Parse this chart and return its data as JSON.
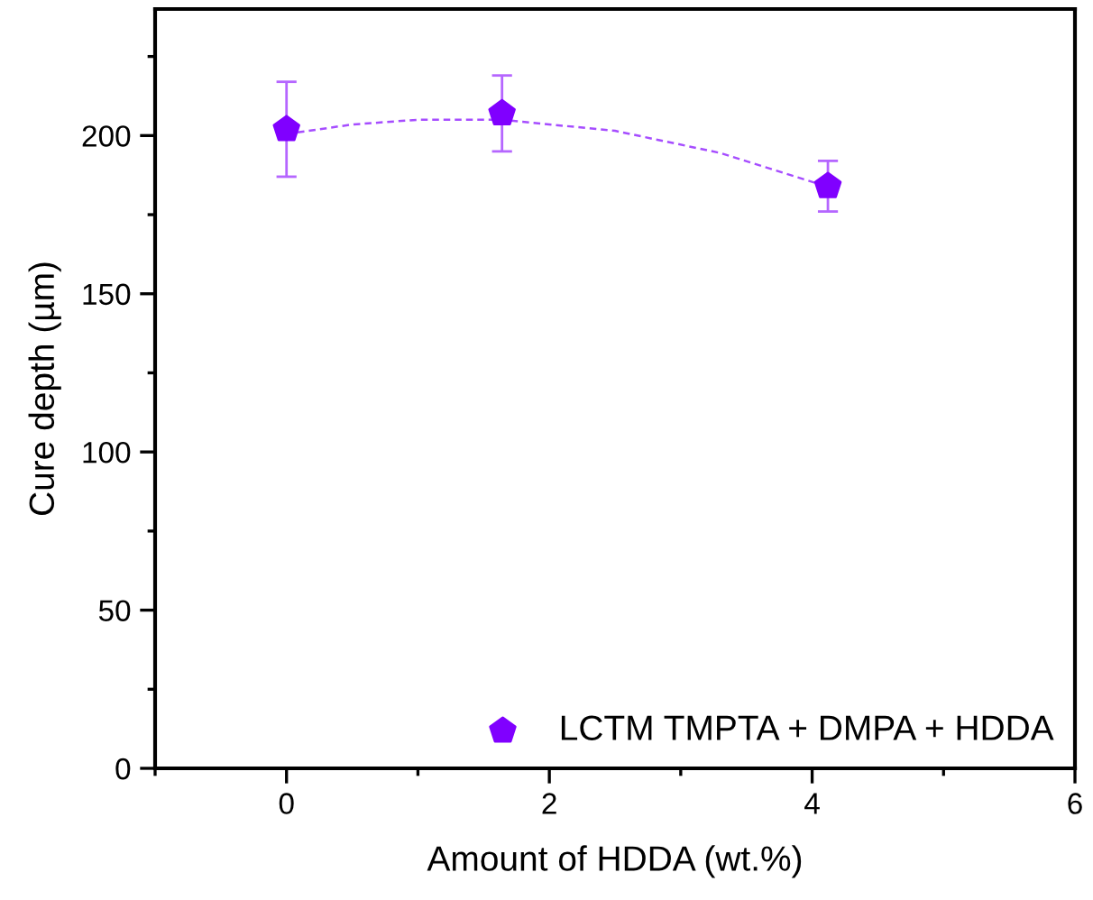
{
  "chart_data": {
    "type": "scatter",
    "xlabel": "Amount of HDDA (wt.%)",
    "ylabel": "Cure depth (µm)",
    "xlim": [
      -1,
      6
    ],
    "xticks": [
      0,
      2,
      4,
      6
    ],
    "ylim": [
      0,
      240
    ],
    "yticks": [
      0,
      50,
      100,
      150,
      200
    ],
    "grid": false,
    "legend": "bottom right",
    "series": [
      {
        "name": "LCTM TMPTA + DMPA + HDDA",
        "color": "#8000ff",
        "x": [
          0,
          1.64,
          4.12
        ],
        "values": [
          202,
          207,
          184
        ],
        "errors": [
          [
            187,
            217
          ],
          [
            195,
            219
          ],
          [
            176,
            192
          ]
        ]
      },
      {
        "type": "line",
        "color": "#a64dff",
        "line_style": "dashed",
        "marker": "none",
        "x": [
          0,
          0.5,
          1,
          1.64,
          2.5,
          3.3,
          4.12
        ],
        "values": [
          200.5,
          203.5,
          205.0,
          205.0,
          201.5,
          194.5,
          183.8
        ]
      }
    ]
  }
}
